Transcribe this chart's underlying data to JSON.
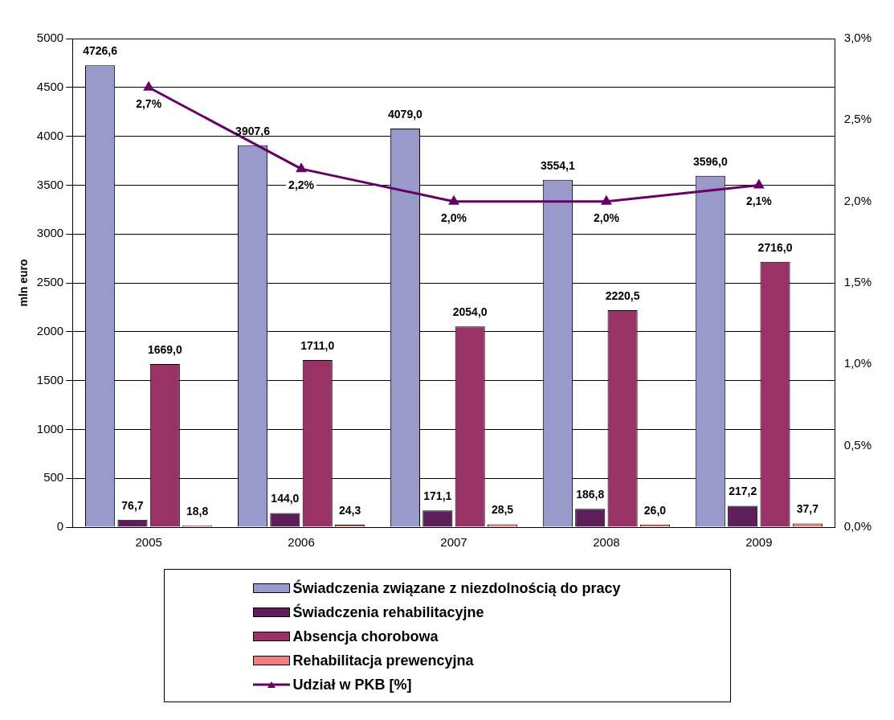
{
  "chart_data": {
    "type": "bar",
    "ylabel": "mln euro",
    "categories": [
      "2005",
      "2006",
      "2007",
      "2008",
      "2009"
    ],
    "series": [
      {
        "name": "Świadczenia związane z niezdolnością do pracy",
        "color": "#9999cc",
        "values": [
          4726.6,
          3907.6,
          4079.0,
          3554.1,
          3596.0
        ],
        "value_labels": [
          "4726,6",
          "3907,6",
          "4079,0",
          "3554,1",
          "3596,0"
        ]
      },
      {
        "name": "Świadczenia rehabilitacyjne",
        "color": "#5c1f5c",
        "values": [
          76.7,
          144.0,
          171.1,
          186.8,
          217.2
        ],
        "value_labels": [
          "76,7",
          "144,0",
          "171,1",
          "186,8",
          "217,2"
        ]
      },
      {
        "name": "Absencja chorobowa",
        "color": "#993366",
        "values": [
          1669.0,
          1711.0,
          2054.0,
          2220.5,
          2716.0
        ],
        "value_labels": [
          "1669,0",
          "1711,0",
          "2054,0",
          "2220,5",
          "2716,0"
        ]
      },
      {
        "name": "Rehabilitacja prewencyjna",
        "color": "#f08080",
        "values": [
          18.8,
          24.3,
          28.5,
          26.0,
          37.7
        ],
        "value_labels": [
          "18,8",
          "24,3",
          "28,5",
          "26,0",
          "37,7"
        ]
      },
      {
        "name": "Udział w PKB [%]",
        "type": "line",
        "axis": "y2",
        "color": "#660066",
        "marker": "triangle",
        "values": [
          2.7,
          2.2,
          2.0,
          2.0,
          2.1
        ],
        "value_labels": [
          "2,7%",
          "2,2%",
          "2,0%",
          "2,0%",
          "2,1%"
        ]
      }
    ],
    "ylim": [
      0,
      5000
    ],
    "yticks": [
      0,
      500,
      1000,
      1500,
      2000,
      2500,
      3000,
      3500,
      4000,
      4500,
      5000
    ],
    "y2lim": [
      0,
      3.0
    ],
    "y2ticks": [
      {
        "value": 0,
        "label": "0,0%"
      },
      {
        "value": 0.5,
        "label": "0,5%"
      },
      {
        "value": 1.0,
        "label": "1,0%"
      },
      {
        "value": 1.5,
        "label": "1,5%"
      },
      {
        "value": 2.0,
        "label": "2,0%"
      },
      {
        "value": 2.5,
        "label": "2,5%"
      },
      {
        "value": 3.0,
        "label": "3,0%"
      }
    ],
    "grid": "y",
    "legend": "bottom"
  }
}
